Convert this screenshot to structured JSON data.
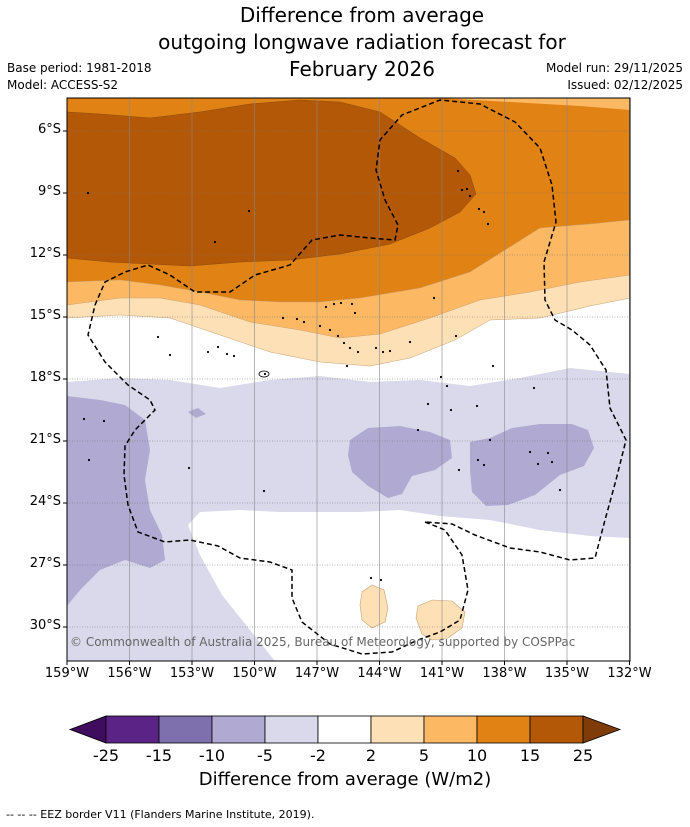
{
  "title": {
    "line1": "Difference from average",
    "line2": "outgoing longwave radiation forecast for",
    "line3": "February 2026"
  },
  "meta": {
    "base_period": "Base period: 1981-2018",
    "model": "Model: ACCESS-S2",
    "model_run": "Model run: 29/11/2025",
    "issued": "Issued: 02/12/2025"
  },
  "map": {
    "lat_labels": [
      "6°S",
      "9°S",
      "12°S",
      "15°S",
      "18°S",
      "21°S",
      "24°S",
      "27°S",
      "30°S"
    ],
    "lon_labels": [
      "159°W",
      "156°W",
      "153°W",
      "150°W",
      "147°W",
      "144°W",
      "141°W",
      "138°W",
      "135°W",
      "132°W"
    ],
    "copyright": "© Commonwealth of Australia 2025, Bureau of Meteorology, supported by COSPPac"
  },
  "colorbar": {
    "ticks": [
      "-25",
      "-15",
      "-10",
      "-5",
      "-2",
      "2",
      "5",
      "10",
      "15",
      "25"
    ],
    "colors": [
      "#3f0c5e",
      "#5c2387",
      "#7e70ad",
      "#b0a9d2",
      "#d9d9eb",
      "#ffffff",
      "#fee0b6",
      "#fdb863",
      "#e08214",
      "#b35806",
      "#7f3b08"
    ],
    "title": "Difference from average (W/m2)"
  },
  "legend": {
    "eez_line": "--  --  -- EEZ border V11 (Flanders Marine Institute, 2019)."
  }
}
